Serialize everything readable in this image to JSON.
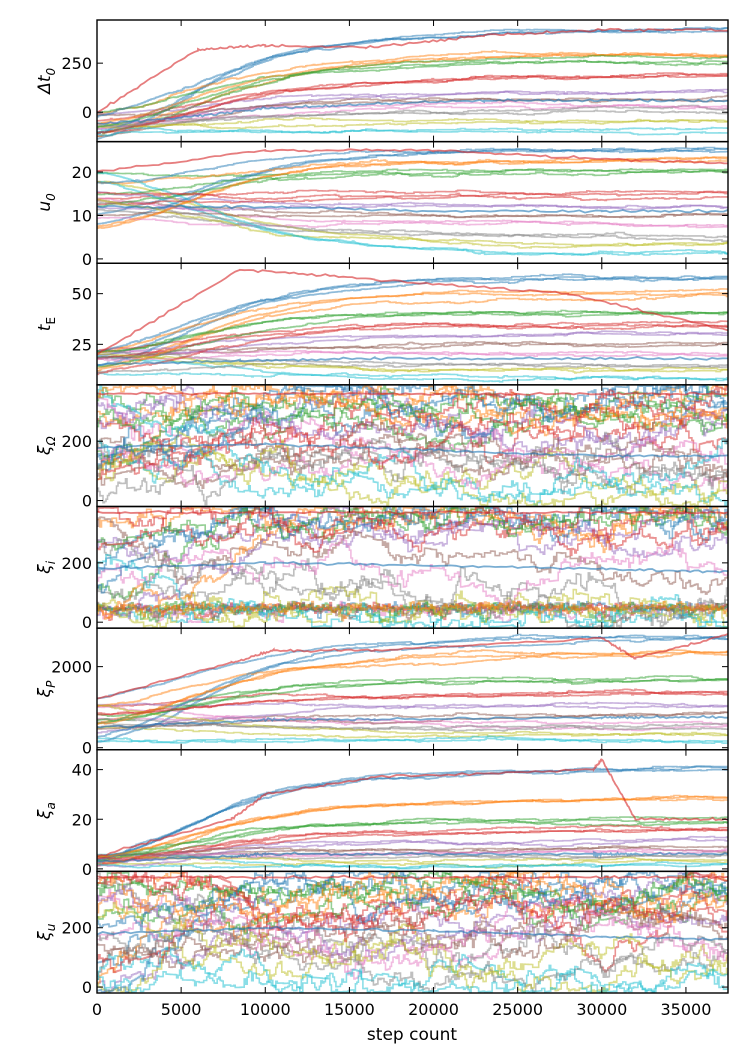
{
  "chart_data": {
    "type": "line",
    "description_kind": "MCMC trace plot, stacked panels sharing the x axis",
    "xlabel": "step count",
    "x_range": [
      0,
      37500
    ],
    "x_ticks": [
      0,
      5000,
      10000,
      15000,
      20000,
      25000,
      30000,
      35000
    ],
    "x_tick_labels": [
      "0",
      "5000",
      "10000",
      "15000",
      "20000",
      "25000",
      "30000",
      "35000"
    ],
    "grid": false,
    "legend": "none",
    "n_walkers": 24,
    "walker_colors": [
      "#1f77b4",
      "#ff7f0e",
      "#2ca02c",
      "#d62728",
      "#9467bd",
      "#8c564b",
      "#e377c2",
      "#7f7f7f",
      "#bcbd22",
      "#17becf"
    ],
    "line_opacity": 0.5,
    "panels": [
      {
        "key": "dt0",
        "ylabel_main": "Δt",
        "ylabel_sub": "0",
        "ylim": [
          -150,
          470
        ],
        "y_ticks": [
          0,
          250
        ],
        "y_tick_labels": [
          "0",
          "250"
        ],
        "walker_start_range": [
          -140,
          0
        ],
        "drift_targets": [
          420,
          300,
          260,
          180,
          100,
          60,
          30,
          10,
          -60,
          -100
        ],
        "series_x": [
          0,
          6000,
          10000,
          16000,
          23000,
          30000,
          37500
        ],
        "series_y_upper": [
          0,
          320,
          340,
          330,
          390,
          420,
          420
        ],
        "series_y_median": [
          -60,
          -20,
          20,
          40,
          60,
          60,
          60
        ]
      },
      {
        "key": "u0",
        "ylabel_main": "u",
        "ylabel_sub": "0",
        "ylim": [
          -1,
          27
        ],
        "y_ticks": [
          0,
          10,
          20
        ],
        "y_tick_labels": [
          "0",
          "10",
          "20"
        ],
        "walker_start_range": [
          7,
          20
        ],
        "drift_targets": [
          25,
          23,
          20,
          15,
          12,
          10,
          8,
          5,
          3,
          1
        ],
        "series_x": [
          0,
          10000,
          20000,
          30000,
          37500
        ],
        "series_y_upper": [
          20,
          25,
          25,
          23,
          22
        ],
        "series_y_median": [
          12,
          12,
          11,
          11,
          11
        ]
      },
      {
        "key": "tE",
        "ylabel_main": "t",
        "ylabel_sub": "E",
        "ylim": [
          5,
          65
        ],
        "y_ticks": [
          25,
          50
        ],
        "y_tick_labels": [
          "25",
          "50"
        ],
        "walker_start_range": [
          10,
          22
        ],
        "drift_targets": [
          58,
          50,
          40,
          35,
          30,
          25,
          20,
          15,
          12,
          8
        ],
        "series_x": [
          0,
          8500,
          16500,
          28000,
          37500
        ],
        "series_y_upper": [
          20,
          62,
          57,
          50,
          32
        ],
        "series_y_median": [
          15,
          17,
          18,
          18,
          18
        ]
      },
      {
        "key": "xiOmega",
        "ylabel_main": "ξ",
        "ylabel_sub": "Ω",
        "ylim": [
          -20,
          390
        ],
        "y_ticks": [
          0,
          200
        ],
        "y_tick_labels": [
          "0",
          "200"
        ],
        "walker_start_range": [
          0,
          360
        ],
        "drift_targets": [
          360,
          330,
          300,
          260,
          220,
          180,
          140,
          100,
          60,
          20
        ],
        "series_x": [
          0,
          10000,
          20000,
          30000,
          37500
        ],
        "series_y_upper": [
          360,
          360,
          360,
          360,
          360
        ],
        "series_y_median": [
          180,
          190,
          170,
          150,
          150
        ]
      },
      {
        "key": "xii",
        "ylabel_main": "ξ",
        "ylabel_sub": "i",
        "ylim": [
          -20,
          390
        ],
        "y_ticks": [
          0,
          200
        ],
        "y_tick_labels": [
          "0",
          "200"
        ],
        "walker_start_range": [
          0,
          380
        ],
        "drift_targets": [
          370,
          360,
          350,
          330,
          300,
          220,
          170,
          100,
          40,
          10
        ],
        "series_x": [
          0,
          10000,
          20000,
          30000,
          37500
        ],
        "series_y_upper": [
          370,
          370,
          370,
          370,
          370
        ],
        "series_y_median": [
          180,
          200,
          190,
          180,
          170
        ]
      },
      {
        "key": "xiP",
        "ylabel_main": "ξ",
        "ylabel_sub": "P",
        "ylim": [
          -50,
          2950
        ],
        "y_ticks": [
          0,
          2000
        ],
        "y_tick_labels": [
          "0",
          "2000"
        ],
        "walker_start_range": [
          100,
          1200
        ],
        "drift_targets": [
          2700,
          2300,
          1700,
          1300,
          1000,
          800,
          600,
          450,
          300,
          150
        ],
        "series_x": [
          0,
          8000,
          10500,
          16500,
          30000,
          32000,
          37500
        ],
        "series_y_upper": [
          1200,
          2100,
          2400,
          2400,
          2700,
          2200,
          2800
        ],
        "series_y_median": [
          500,
          650,
          700,
          700,
          750,
          750,
          750
        ]
      },
      {
        "key": "xia",
        "ylabel_main": "ξ",
        "ylabel_sub": "a",
        "ylim": [
          -1,
          48
        ],
        "y_ticks": [
          0,
          20,
          40
        ],
        "y_tick_labels": [
          "0",
          "20",
          "40"
        ],
        "walker_start_range": [
          1,
          6
        ],
        "drift_targets": [
          40,
          28,
          20,
          15,
          12,
          9,
          7,
          5,
          3,
          2
        ],
        "series_x": [
          0,
          8000,
          10000,
          16500,
          29500,
          30000,
          32000,
          37500
        ],
        "series_y_upper": [
          5,
          20,
          30,
          37,
          40,
          44,
          20,
          20
        ],
        "series_y_median": [
          3,
          5,
          6,
          6,
          6,
          6,
          6,
          6
        ]
      },
      {
        "key": "xiu",
        "ylabel_main": "ξ",
        "ylabel_sub": "u",
        "ylim": [
          -20,
          390
        ],
        "y_ticks": [
          0,
          200
        ],
        "y_tick_labels": [
          "0",
          "200"
        ],
        "walker_start_range": [
          0,
          370
        ],
        "drift_targets": [
          370,
          340,
          300,
          260,
          220,
          180,
          140,
          100,
          60,
          20
        ],
        "series_x": [
          0,
          10000,
          20000,
          30000,
          37500
        ],
        "series_y_upper": [
          370,
          370,
          370,
          370,
          370
        ],
        "series_y_median": [
          180,
          200,
          190,
          170,
          160
        ]
      }
    ]
  }
}
